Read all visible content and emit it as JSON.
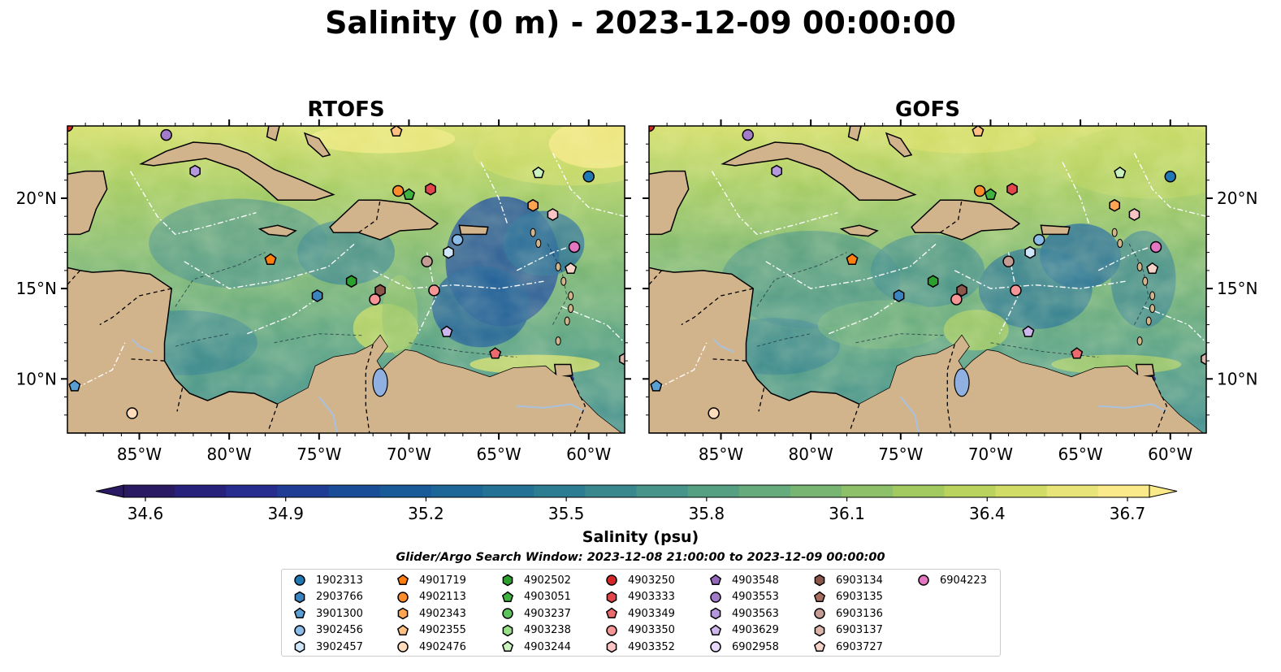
{
  "title": "Salinity (0 m) - 2023-12-09 00:00:00",
  "panels": [
    {
      "title": "RTOFS",
      "variant": 0
    },
    {
      "title": "GOFS",
      "variant": 1
    }
  ],
  "axes": {
    "lon_range": [
      -89,
      -58
    ],
    "lat_range": [
      7,
      24
    ],
    "x_ticks": [
      "85°W",
      "80°W",
      "75°W",
      "70°W",
      "65°W",
      "60°W"
    ],
    "x_tick_values": [
      -85,
      -80,
      -75,
      -70,
      -65,
      -60
    ],
    "y_ticks": [
      "20°N",
      "15°N",
      "10°N"
    ],
    "y_tick_values": [
      20,
      15,
      10
    ]
  },
  "colorbar": {
    "label": "Salinity (psu)",
    "min": 34.6,
    "max": 36.7,
    "tick_labels": [
      "34.6",
      "34.9",
      "35.2",
      "35.5",
      "35.8",
      "36.1",
      "36.4",
      "36.7"
    ],
    "tick_values": [
      34.6,
      34.9,
      35.2,
      35.5,
      35.8,
      36.1,
      36.4,
      36.7
    ],
    "colors": [
      "#2a1a63",
      "#28217c",
      "#262d8e",
      "#1f3d95",
      "#1a4d97",
      "#185b98",
      "#1c6797",
      "#237295",
      "#2d7d92",
      "#38888e",
      "#46948a",
      "#55a083",
      "#66ab7b",
      "#79b572",
      "#8dc068",
      "#a2ca61",
      "#b9d35e",
      "#d1dc66",
      "#e8e47a",
      "#fbea8a"
    ],
    "extend": "both"
  },
  "search_window": "Glider/Argo Search Window: 2023-12-08 21:00:00 to 2023-12-09 00:00:00",
  "land_color": "#d2b48c",
  "lake_color": "#8fb0e0",
  "legend_items": [
    {
      "id": "1902313",
      "marker": "circle",
      "color": "#1f77b4"
    },
    {
      "id": "2903766",
      "marker": "hexagon",
      "color": "#3a85c0"
    },
    {
      "id": "3901300",
      "marker": "pentagon",
      "color": "#5a9fd4"
    },
    {
      "id": "3902456",
      "marker": "circle",
      "color": "#8bbde8"
    },
    {
      "id": "3902457",
      "marker": "hexagon",
      "color": "#cfe6f8"
    },
    {
      "id": "4901719",
      "marker": "pentagon",
      "color": "#ff7f0e"
    },
    {
      "id": "4902113",
      "marker": "circle",
      "color": "#ff8c2a"
    },
    {
      "id": "4902343",
      "marker": "hexagon",
      "color": "#ffa552"
    },
    {
      "id": "4902355",
      "marker": "pentagon",
      "color": "#ffc183"
    },
    {
      "id": "4902476",
      "marker": "circle",
      "color": "#ffdcbc"
    },
    {
      "id": "4902502",
      "marker": "hexagon",
      "color": "#2ca02c"
    },
    {
      "id": "4903051",
      "marker": "pentagon",
      "color": "#3fb23f"
    },
    {
      "id": "4903237",
      "marker": "circle",
      "color": "#5cc45c"
    },
    {
      "id": "4903238",
      "marker": "hexagon",
      "color": "#98df8a"
    },
    {
      "id": "4903244",
      "marker": "pentagon",
      "color": "#c9f2bf"
    },
    {
      "id": "4903250",
      "marker": "circle",
      "color": "#d62728"
    },
    {
      "id": "4903333",
      "marker": "hexagon",
      "color": "#e2464a"
    },
    {
      "id": "4903349",
      "marker": "pentagon",
      "color": "#ec6a6d"
    },
    {
      "id": "4903350",
      "marker": "circle",
      "color": "#f59595"
    },
    {
      "id": "4903352",
      "marker": "hexagon",
      "color": "#fbc4c4"
    },
    {
      "id": "4903548",
      "marker": "pentagon",
      "color": "#9467bd"
    },
    {
      "id": "4903553",
      "marker": "circle",
      "color": "#a27ccb"
    },
    {
      "id": "4903563",
      "marker": "hexagon",
      "color": "#b497dc"
    },
    {
      "id": "4903629",
      "marker": "pentagon",
      "color": "#cdb7ee"
    },
    {
      "id": "6902958",
      "marker": "circle",
      "color": "#e6d8f8"
    },
    {
      "id": "6903134",
      "marker": "hexagon",
      "color": "#8c564b"
    },
    {
      "id": "6903135",
      "marker": "pentagon",
      "color": "#a86e62"
    },
    {
      "id": "6903136",
      "marker": "circle",
      "color": "#c49c94"
    },
    {
      "id": "6903137",
      "marker": "hexagon",
      "color": "#dcb5aa"
    },
    {
      "id": "6903727",
      "marker": "pentagon",
      "color": "#f5d3c9"
    },
    {
      "id": "6904223",
      "marker": "circle",
      "color": "#e377c2"
    }
  ],
  "floats_on_map": [
    {
      "id": "1902313",
      "lon": -60.0,
      "lat": 21.2
    },
    {
      "id": "2903766",
      "lon": -75.1,
      "lat": 14.6
    },
    {
      "id": "3901300",
      "lon": -88.6,
      "lat": 9.6
    },
    {
      "id": "3902456",
      "lon": -67.3,
      "lat": 17.7
    },
    {
      "id": "3902457",
      "lon": -67.8,
      "lat": 17.0
    },
    {
      "id": "4901719",
      "lon": -77.7,
      "lat": 16.6
    },
    {
      "id": "4902113",
      "lon": -70.6,
      "lat": 20.4
    },
    {
      "id": "4902343",
      "lon": -63.1,
      "lat": 19.6
    },
    {
      "id": "4902355",
      "lon": -70.7,
      "lat": 23.7
    },
    {
      "id": "4902476",
      "lon": -85.4,
      "lat": 8.1
    },
    {
      "id": "4902502",
      "lon": -73.2,
      "lat": 15.4
    },
    {
      "id": "4903051",
      "lon": -70.0,
      "lat": 20.2
    },
    {
      "id": "4903250",
      "lon": -89.0,
      "lat": 24.0
    },
    {
      "id": "4903333",
      "lon": -68.8,
      "lat": 20.5
    },
    {
      "id": "4903349",
      "lon": -65.2,
      "lat": 11.4
    },
    {
      "id": "4903350",
      "lon": -68.6,
      "lat": 14.9
    },
    {
      "id": "4903352",
      "lon": -62.0,
      "lat": 19.1
    },
    {
      "id": "4903553",
      "lon": -83.5,
      "lat": 23.5
    },
    {
      "id": "4903563",
      "lon": -81.9,
      "lat": 21.5
    },
    {
      "id": "4903629",
      "lon": -67.9,
      "lat": 12.6
    },
    {
      "id": "4903244",
      "lon": -62.8,
      "lat": 21.4
    },
    {
      "id": "6903134",
      "lon": -71.6,
      "lat": 14.9
    },
    {
      "id": "6903136",
      "lon": -69.0,
      "lat": 16.5
    },
    {
      "id": "6903137",
      "lon": -58.0,
      "lat": 11.1
    },
    {
      "id": "6903727",
      "lon": -61.0,
      "lat": 16.1
    },
    {
      "id": "6904223",
      "lon": -60.8,
      "lat": 17.3
    },
    {
      "id": "4903350",
      "lon": -71.9,
      "lat": 14.4
    }
  ]
}
